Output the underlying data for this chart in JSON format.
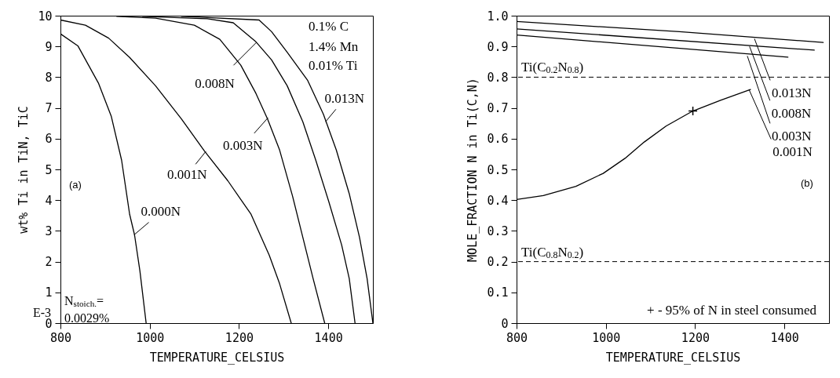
{
  "chart_data": [
    {
      "type": "line",
      "xlabel": "TEMPERATURE_CELSIUS",
      "ylabel": "wt% Ti in TiN, TiC",
      "xlim": [
        800,
        1500
      ],
      "xticks": [
        800,
        1000,
        1200,
        1400
      ],
      "ylim": [
        0,
        10
      ],
      "yticks": [
        0,
        1,
        2,
        3,
        4,
        5,
        6,
        7,
        8,
        9,
        10
      ],
      "series": [
        {
          "color": "#000000",
          "x": [
            800,
            839,
            885,
            914,
            937,
            955,
            966,
            978,
            992
          ],
          "values": [
            9.41,
            9.02,
            7.81,
            6.72,
            5.3,
            3.54,
            2.87,
            1.7,
            0
          ]
        },
        {
          "color": "#000000",
          "x": [
            800,
            856,
            908,
            955,
            1013,
            1071,
            1123,
            1175,
            1227,
            1268,
            1291,
            1317
          ],
          "values": [
            9.86,
            9.69,
            9.27,
            8.64,
            7.72,
            6.64,
            5.59,
            4.63,
            3.54,
            2.2,
            1.28,
            0
          ]
        },
        {
          "color": "#000000",
          "x": [
            926,
            1013,
            1100,
            1157,
            1204,
            1238,
            1264,
            1291,
            1320,
            1343,
            1366,
            1392
          ],
          "values": [
            9.98,
            9.92,
            9.69,
            9.23,
            8.39,
            7.47,
            6.64,
            5.63,
            4.13,
            2.79,
            1.45,
            0
          ]
        },
        {
          "color": "#000000",
          "x": [
            984,
            1129,
            1187,
            1238,
            1273,
            1308,
            1343,
            1372,
            1401,
            1430,
            1447,
            1460
          ],
          "values": [
            9.98,
            9.9,
            9.77,
            9.15,
            8.56,
            7.72,
            6.55,
            5.3,
            3.96,
            2.54,
            1.45,
            0
          ]
        },
        {
          "color": "#000000",
          "x": [
            1071,
            1245,
            1273,
            1308,
            1354,
            1389,
            1418,
            1447,
            1470,
            1487,
            1500
          ],
          "values": [
            9.98,
            9.86,
            9.48,
            8.81,
            7.89,
            6.8,
            5.63,
            4.21,
            2.79,
            1.45,
            0
          ]
        }
      ],
      "annotations": [
        {
          "text": "0.000N",
          "x": 965,
          "y": 2.87
        },
        {
          "text": "0.001N",
          "x": 1126,
          "y": 5.59
        },
        {
          "text": "0.003N",
          "x": 1265,
          "y": 6.68
        },
        {
          "text": "0.008N",
          "x": 1239,
          "y": 9.13
        },
        {
          "text": "0.013N",
          "x": 1394,
          "y": 6.55
        },
        "0.1% C",
        "1.4% Mn",
        "0.01% Ti",
        "(a)",
        "N$_{stoich.}$=",
        "0.0029%",
        "E-3"
      ]
    },
    {
      "type": "line",
      "xlabel": "TEMPERATURE_CELSIUS",
      "ylabel": "MOLE_FRACTION N in Ti(C,N)",
      "xlim": [
        800,
        1500
      ],
      "xticks": [
        800,
        1000,
        1200,
        1400
      ],
      "ylim": [
        0,
        1
      ],
      "yticks": [
        0,
        0.1,
        0.2,
        0.3,
        0.4,
        0.5,
        0.6,
        0.7,
        0.8,
        0.9,
        {
          "value": 1,
          "label": "1.0"
        }
      ],
      "series": [
        {
          "color": "#000000",
          "x": [
            800,
            1165,
            1487
          ],
          "values": [
            0.981,
            0.948,
            0.913
          ]
        },
        {
          "color": "#000000",
          "x": [
            800,
            1467
          ],
          "values": [
            0.957,
            0.888
          ]
        },
        {
          "color": "#000000",
          "x": [
            800,
            1408
          ],
          "values": [
            0.937,
            0.865
          ]
        },
        {
          "color": "#000000",
          "x": [
            800,
            860,
            933,
            994,
            1043,
            1086,
            1135,
            1195,
            1257,
            1324
          ],
          "values": [
            0.402,
            0.415,
            0.445,
            0.487,
            0.536,
            0.589,
            0.641,
            0.69,
            0.725,
            0.76
          ]
        },
        {
          "type": "scatter",
          "color": "#000000",
          "marker": "cross",
          "x": [
            1195
          ],
          "values": [
            0.69
          ]
        }
      ],
      "ref_lines": [
        {
          "axis": "y",
          "value": 0.8,
          "label": "Ti(C$_{0.2}$N$_{0.8}$)",
          "line_style": "dashed",
          "color": "#000000"
        },
        {
          "axis": "y",
          "value": 0.2,
          "label": "Ti(C$_{0.8}$N$_{0.2}$)",
          "line_style": "dashed",
          "color": "#000000"
        }
      ],
      "annotations": [
        {
          "text": "0.013N",
          "x": 1333,
          "y": 0.925
        },
        {
          "text": "0.008N",
          "x": 1322,
          "y": 0.9
        },
        {
          "text": "0.003N",
          "x": 1317,
          "y": 0.869
        },
        {
          "text": "0.001N",
          "x": 1321,
          "y": 0.759
        },
        "(b)",
        "+ - 95% of N in steel consumed"
      ]
    }
  ]
}
